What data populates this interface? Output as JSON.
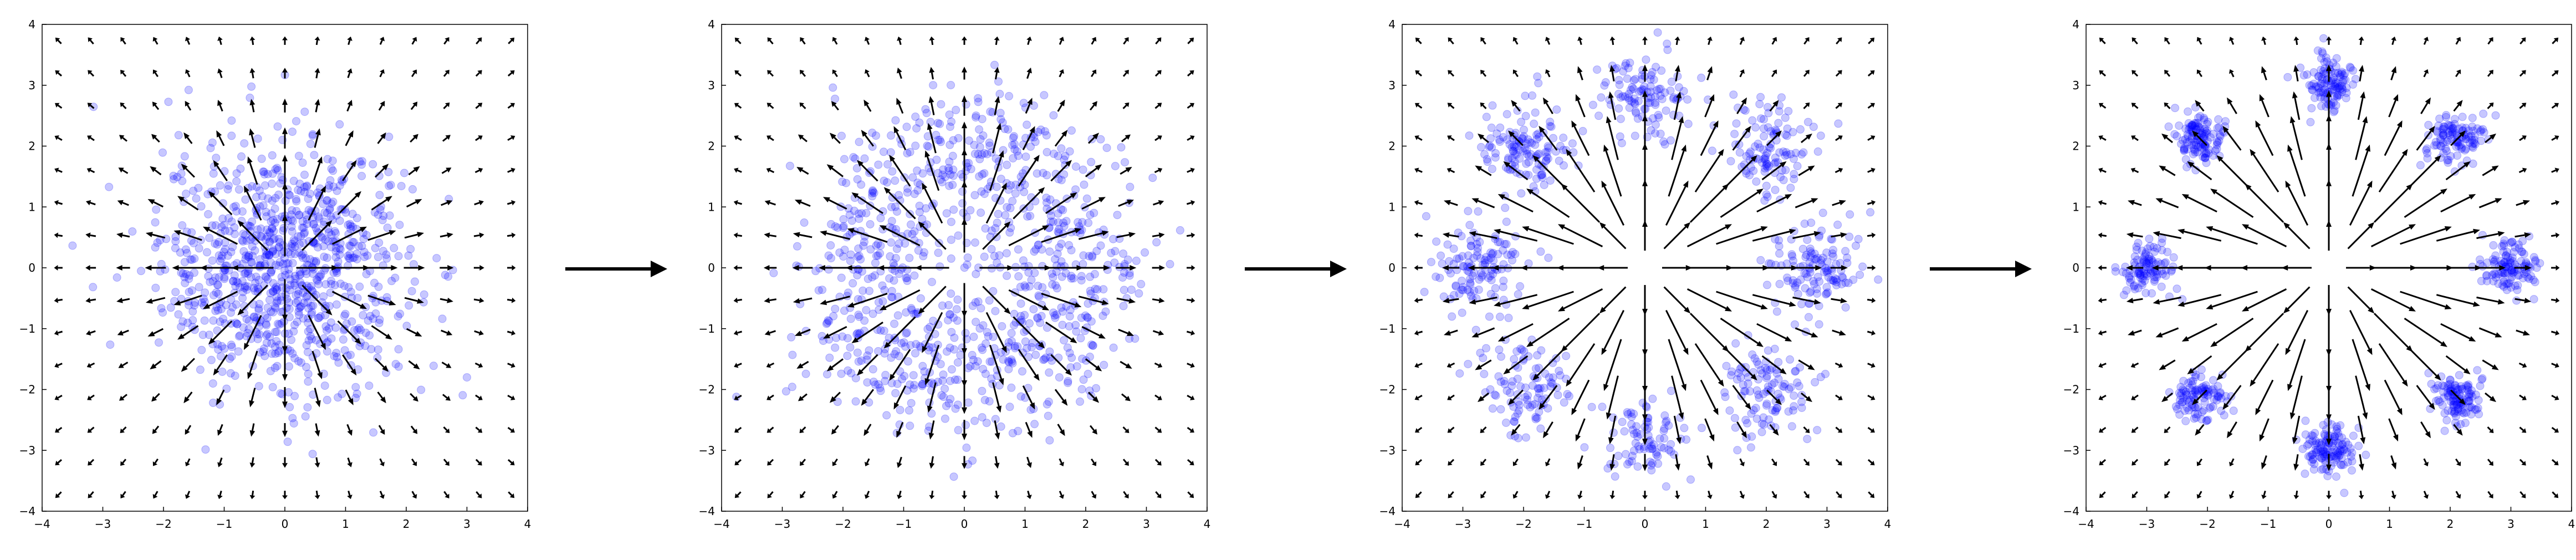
{
  "figure": {
    "background": "#ffffff",
    "point_color": "#0000ff",
    "point_opacity": 0.22,
    "arrow_color": "#000000",
    "flow_arrow_color": "#000000",
    "flow_arrows": 3
  },
  "chart_data": [
    {
      "type": "scatter",
      "title": "",
      "xlabel": "",
      "ylabel": "",
      "xlim": [
        -4,
        4
      ],
      "ylim": [
        -4,
        4
      ],
      "x_ticks": [
        "−4",
        "−3",
        "−2",
        "−1",
        "0",
        "1",
        "2",
        "3",
        "4"
      ],
      "y_ticks": [
        "4",
        "3",
        "2",
        "1",
        "0",
        "−1",
        "−2",
        "−3",
        "−4"
      ],
      "grid": false,
      "distribution": "centered-gaussian",
      "distribution_params": {
        "count": 900,
        "sigma": 1.0,
        "center": [
          0,
          0
        ]
      },
      "overlay": "vector-field-radial-outward"
    },
    {
      "type": "scatter",
      "title": "",
      "xlabel": "",
      "ylabel": "",
      "xlim": [
        -4,
        4
      ],
      "ylim": [
        -4,
        4
      ],
      "x_ticks": [
        "−4",
        "−3",
        "−2",
        "−1",
        "0",
        "1",
        "2",
        "3",
        "4"
      ],
      "y_ticks": [
        "4",
        "3",
        "2",
        "1",
        "0",
        "−1",
        "−2",
        "−3",
        "−4"
      ],
      "grid": false,
      "distribution": "ring",
      "distribution_params": {
        "count": 900,
        "radius": 1.9,
        "spread": 0.65,
        "center": [
          0,
          0
        ]
      },
      "overlay": "vector-field-radial-outward"
    },
    {
      "type": "scatter",
      "title": "",
      "xlabel": "",
      "ylabel": "",
      "xlim": [
        -4,
        4
      ],
      "ylim": [
        -4,
        4
      ],
      "x_ticks": [
        "−4",
        "−3",
        "−2",
        "−1",
        "0",
        "1",
        "2",
        "3",
        "4"
      ],
      "y_ticks": [
        "4",
        "3",
        "2",
        "1",
        "0",
        "−1",
        "−2",
        "−3",
        "−4"
      ],
      "grid": false,
      "distribution": "eight-clusters",
      "distribution_params": {
        "count": 900,
        "clusters": 8,
        "radius": 2.8,
        "sigma": 0.38,
        "center": [
          0,
          0
        ]
      },
      "overlay": "vector-field-radial-outward"
    },
    {
      "type": "scatter",
      "title": "",
      "xlabel": "",
      "ylabel": "",
      "xlim": [
        -4,
        4
      ],
      "ylim": [
        -4,
        4
      ],
      "x_ticks": [
        "−4",
        "−3",
        "−2",
        "−1",
        "0",
        "1",
        "2",
        "3",
        "4"
      ],
      "y_ticks": [
        "4",
        "3",
        "2",
        "1",
        "0",
        "−1",
        "−2",
        "−3",
        "−4"
      ],
      "grid": false,
      "distribution": "eight-clusters",
      "distribution_params": {
        "count": 900,
        "clusters": 8,
        "radius": 3.0,
        "sigma": 0.22,
        "center": [
          0,
          0
        ]
      },
      "overlay": "vector-field-radial-outward"
    }
  ]
}
